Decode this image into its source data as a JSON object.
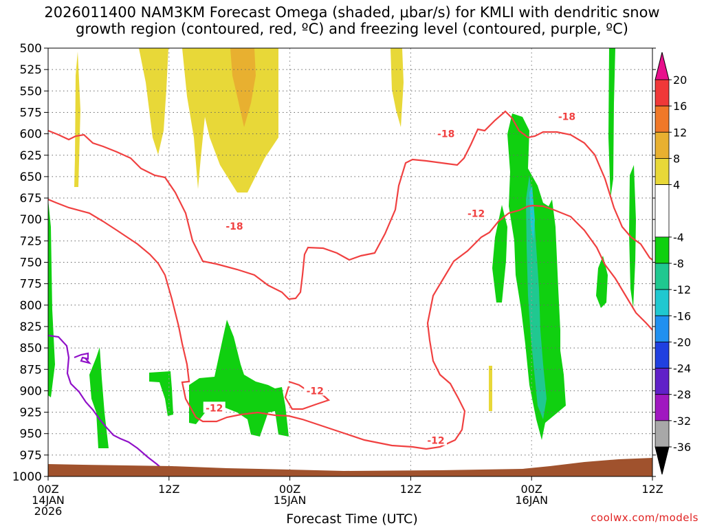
{
  "title": {
    "line1": "2026011400 NAM3KM Forecast Omega (shaded, μbar/s) for KMLI with dendritic snow",
    "line2": "growth region (contoured, red, ºC) and freezing level (contoured, purple, ºC)"
  },
  "credit": "coolwx.com/models",
  "chart_data": {
    "type": "time-height",
    "title": "2026011400 NAM3KM Forecast Omega (shaded, μbar/s) for KMLI with dendritic snow growth region (contoured, red, ºC) and freezing level (contoured, purple, ºC)",
    "xlabel": "Forecast Time (UTC)",
    "ylabel": "",
    "ylim": [
      1000,
      500
    ],
    "xlim_hours": [
      0,
      60
    ],
    "grid": true,
    "y_ticks": [
      "500",
      "525",
      "550",
      "575",
      "600",
      "625",
      "650",
      "675",
      "700",
      "725",
      "750",
      "775",
      "800",
      "825",
      "850",
      "875",
      "900",
      "925",
      "950",
      "975",
      "1000"
    ],
    "x_ticks": [
      {
        "hour": 0,
        "line1": "00Z",
        "line2": "14JAN",
        "line3": "2026"
      },
      {
        "hour": 12,
        "line1": "12Z"
      },
      {
        "hour": 24,
        "line1": "00Z",
        "line2": "15JAN"
      },
      {
        "hour": 36,
        "line1": "12Z"
      },
      {
        "hour": 48,
        "line1": "00Z",
        "line2": "16JAN"
      },
      {
        "hour": 60,
        "line1": "12Z"
      }
    ],
    "colorbar": {
      "labels": [
        "20",
        "16",
        "12",
        "8",
        "4",
        "-4",
        "-8",
        "-12",
        "-16",
        "-20",
        "-24",
        "-28",
        "-32",
        "-36"
      ],
      "segments": [
        {
          "from": 16,
          "to": 20,
          "color": "#f03838"
        },
        {
          "from": 12,
          "to": 16,
          "color": "#f07828"
        },
        {
          "from": 8,
          "to": 12,
          "color": "#e8b030"
        },
        {
          "from": 4,
          "to": 8,
          "color": "#e8d838"
        },
        {
          "from": -4,
          "to": 4,
          "color": "#ffffff"
        },
        {
          "from": -8,
          "to": -4,
          "color": "#10d010"
        },
        {
          "from": -12,
          "to": -8,
          "color": "#20c890"
        },
        {
          "from": -16,
          "to": -12,
          "color": "#20c8d0"
        },
        {
          "from": -20,
          "to": -16,
          "color": "#2090f0"
        },
        {
          "from": -24,
          "to": -20,
          "color": "#2040e0"
        },
        {
          "from": -28,
          "to": -24,
          "color": "#6020c8"
        },
        {
          "from": -32,
          "to": -28,
          "color": "#a018c0"
        },
        {
          "from": -36,
          "to": -32,
          "color": "#a8a8a8"
        }
      ],
      "top_arrow_color": "#e8108c",
      "bottom_arrow_color": "#000000"
    },
    "contour_labels": [
      {
        "text": "-18",
        "hour": 18.5,
        "pressure": 708
      },
      {
        "text": "-18",
        "hour": 39.5,
        "pressure": 600
      },
      {
        "text": "-18",
        "hour": 51.5,
        "pressure": 580
      },
      {
        "text": "-12",
        "hour": 16.5,
        "pressure": 920
      },
      {
        "text": "-12",
        "hour": 26.5,
        "pressure": 900
      },
      {
        "text": "-12",
        "hour": 38.5,
        "pressure": 958
      },
      {
        "text": "-12",
        "hour": 42.5,
        "pressure": 693
      }
    ],
    "colors": {
      "dendritic": "#f04040",
      "freezing": "#9010c8",
      "terrain": "#a0522d",
      "grid": "#888888"
    }
  }
}
